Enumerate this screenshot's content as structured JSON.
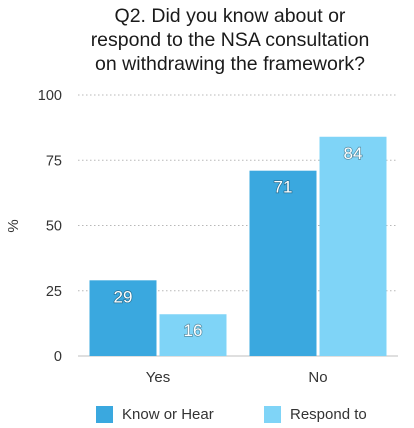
{
  "chart_data": {
    "type": "bar",
    "title_lines": [
      "Q2. Did you know about or",
      "respond to the NSA consultation",
      "on withdrawing the framework?"
    ],
    "ylabel": "%",
    "xlabel": "",
    "ylim": [
      0,
      100
    ],
    "yticks": [
      0,
      25,
      50,
      75,
      100
    ],
    "grid": true,
    "categories": [
      "Yes",
      "No"
    ],
    "series": [
      {
        "name": "Know or Hear",
        "color": "#3aa8df",
        "values": [
          29,
          71
        ]
      },
      {
        "name": "Respond to",
        "color": "#7fd4f7",
        "values": [
          16,
          84
        ]
      }
    ],
    "data_labels": true,
    "legend_position": "bottom"
  }
}
